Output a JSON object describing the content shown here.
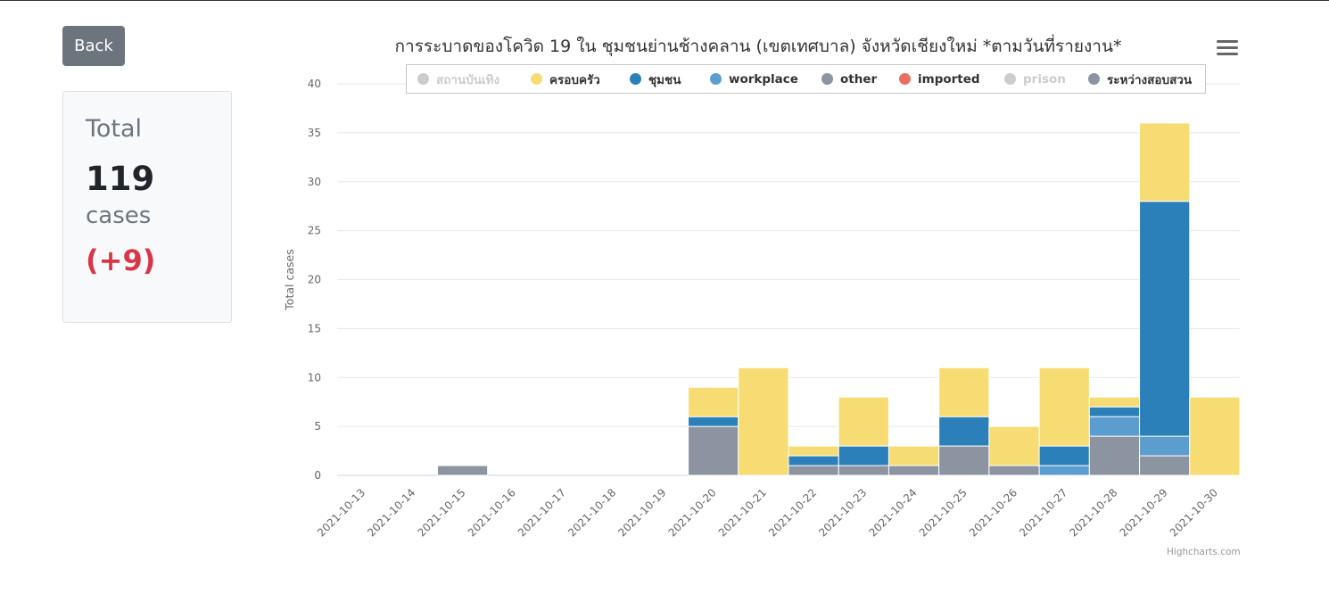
{
  "back_button": {
    "label": "Back"
  },
  "summary": {
    "label": "Total",
    "value": "119",
    "unit": "cases",
    "delta": "(+9)"
  },
  "credits": "Highcharts.com",
  "chart_data": {
    "type": "bar",
    "stacked": true,
    "title": "การระบาดของโควิด 19 ใน ชุมชนย่านช้างคลาน (เขตเทศบาล) จังหวัดเชียงใหม่ *ตามวันที่รายงาน*",
    "xlabel": "",
    "ylabel": "Total cases",
    "ylim": [
      0,
      40
    ],
    "yticks": [
      0,
      5,
      10,
      15,
      20,
      25,
      30,
      35,
      40
    ],
    "grid": true,
    "legend_placement": "top-center",
    "categories": [
      "2021-10-13",
      "2021-10-14",
      "2021-10-15",
      "2021-10-16",
      "2021-10-17",
      "2021-10-18",
      "2021-10-19",
      "2021-10-20",
      "2021-10-21",
      "2021-10-22",
      "2021-10-23",
      "2021-10-24",
      "2021-10-25",
      "2021-10-26",
      "2021-10-27",
      "2021-10-28",
      "2021-10-29",
      "2021-10-30"
    ],
    "series": [
      {
        "name": "สถานบันเทิง",
        "color": "#cccccc",
        "visible": false,
        "values": [
          0,
          0,
          0,
          0,
          0,
          0,
          0,
          0,
          0,
          0,
          0,
          0,
          0,
          0,
          0,
          0,
          0,
          0
        ]
      },
      {
        "name": "ครอบครัว",
        "color": "#f7dc73",
        "visible": true,
        "values": [
          0,
          0,
          0,
          0,
          0,
          0,
          0,
          3,
          11,
          1,
          5,
          2,
          5,
          4,
          8,
          1,
          8,
          8
        ]
      },
      {
        "name": "ชุมชน",
        "color": "#2b80b9",
        "visible": true,
        "values": [
          0,
          0,
          0,
          0,
          0,
          0,
          0,
          1,
          0,
          1,
          2,
          0,
          3,
          0,
          2,
          1,
          24,
          0
        ]
      },
      {
        "name": "workplace",
        "color": "#5b9dcf",
        "visible": true,
        "values": [
          0,
          0,
          0,
          0,
          0,
          0,
          0,
          0,
          0,
          0,
          0,
          0,
          0,
          0,
          1,
          2,
          2,
          0
        ]
      },
      {
        "name": "other",
        "color": "#8b94a0",
        "visible": true,
        "values": [
          0,
          0,
          1,
          0,
          0,
          0,
          0,
          5,
          0,
          1,
          1,
          1,
          3,
          1,
          0,
          4,
          2,
          0
        ]
      },
      {
        "name": "imported",
        "color": "#ea6f63",
        "visible": true,
        "values": [
          0,
          0,
          0,
          0,
          0,
          0,
          0,
          0,
          0,
          0,
          0,
          0,
          0,
          0,
          0,
          0,
          0,
          0
        ]
      },
      {
        "name": "prison",
        "color": "#cccccc",
        "visible": false,
        "values": [
          0,
          0,
          0,
          0,
          0,
          0,
          0,
          0,
          0,
          0,
          0,
          0,
          0,
          0,
          0,
          0,
          0,
          0
        ]
      },
      {
        "name": "ระหว่างสอบสวน",
        "color": "#8b94a0",
        "visible": true,
        "values": [
          0,
          0,
          0,
          0,
          0,
          0,
          0,
          0,
          0,
          0,
          0,
          0,
          0,
          0,
          0,
          0,
          0,
          0
        ]
      }
    ]
  }
}
